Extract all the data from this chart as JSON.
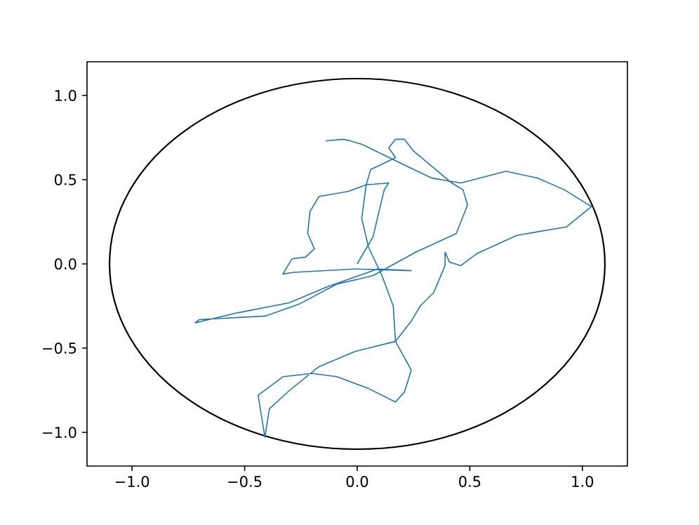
{
  "chart_data": {
    "type": "line",
    "xlim": [
      -1.2,
      1.2
    ],
    "ylim": [
      -1.2,
      1.2
    ],
    "xticks": [
      {
        "value": -1.0,
        "label": "−1.0"
      },
      {
        "value": -0.5,
        "label": "−0.5"
      },
      {
        "value": 0.0,
        "label": "0.0"
      },
      {
        "value": 0.5,
        "label": "0.5"
      },
      {
        "value": 1.0,
        "label": "1.0"
      }
    ],
    "yticks": [
      {
        "value": -1.0,
        "label": "−1.0"
      },
      {
        "value": -0.5,
        "label": "−0.5"
      },
      {
        "value": 0.0,
        "label": "0.0"
      },
      {
        "value": 0.5,
        "label": "0.5"
      },
      {
        "value": 1.0,
        "label": "1.0"
      }
    ],
    "series": [
      {
        "color": "#1f77b4",
        "x": [
          0.0,
          0.07,
          0.12,
          0.14,
          0.04,
          -0.04,
          -0.17,
          -0.21,
          -0.22,
          -0.19,
          -0.23,
          -0.29,
          -0.33,
          -0.28,
          -0.01,
          0.24,
          0.09,
          -0.14,
          -0.3,
          -0.53,
          -0.72,
          -0.7,
          -0.41,
          -0.26,
          -0.09,
          0.07,
          0.26,
          0.44,
          0.49,
          0.47,
          0.42,
          0.25,
          0.21,
          0.17,
          0.14,
          0.17,
          0.06,
          0.04,
          0.02,
          0.05,
          0.11,
          0.16,
          0.17,
          0.24,
          0.21,
          0.17,
          0.05,
          -0.09,
          -0.2,
          -0.33,
          -0.44,
          -0.41,
          -0.39,
          -0.3,
          -0.17,
          -0.01,
          0.17,
          0.24,
          0.28,
          0.34,
          0.39,
          0.39,
          0.41,
          0.46,
          0.53,
          0.71,
          0.93,
          1.04,
          0.92,
          0.8,
          0.66,
          0.46,
          0.33,
          0.22,
          0.02,
          -0.03,
          -0.06,
          -0.14
        ],
        "values": [
          0.0,
          0.16,
          0.44,
          0.48,
          0.47,
          0.43,
          0.4,
          0.31,
          0.18,
          0.09,
          0.04,
          0.03,
          -0.06,
          -0.05,
          -0.03,
          -0.04,
          -0.03,
          -0.14,
          -0.23,
          -0.29,
          -0.35,
          -0.33,
          -0.31,
          -0.24,
          -0.12,
          -0.07,
          0.07,
          0.18,
          0.35,
          0.44,
          0.48,
          0.67,
          0.74,
          0.74,
          0.69,
          0.63,
          0.56,
          0.47,
          0.27,
          0.1,
          -0.07,
          -0.25,
          -0.46,
          -0.63,
          -0.76,
          -0.82,
          -0.74,
          -0.67,
          -0.65,
          -0.67,
          -0.78,
          -1.03,
          -0.86,
          -0.75,
          -0.61,
          -0.52,
          -0.46,
          -0.34,
          -0.25,
          -0.17,
          -0.01,
          0.07,
          0.01,
          -0.01,
          0.06,
          0.17,
          0.22,
          0.34,
          0.44,
          0.51,
          0.55,
          0.48,
          0.51,
          0.58,
          0.71,
          0.73,
          0.74,
          0.73
        ]
      }
    ]
  }
}
